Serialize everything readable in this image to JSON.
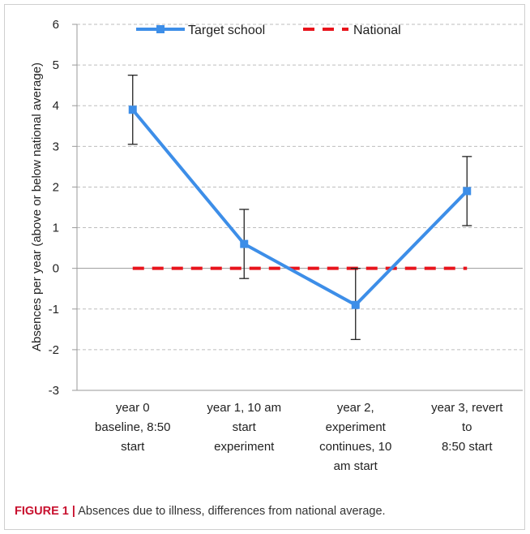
{
  "caption": {
    "figure_label": "FIGURE 1 |",
    "text": "Absences due to illness, differences from national average."
  },
  "colors": {
    "target": "#3d8ee8",
    "national": "#e8141c",
    "grid": "#bdbdbd",
    "error_bar": "#222222",
    "caption_label": "#c8102e"
  },
  "chart_data": {
    "type": "line",
    "ylabel": "Absences per year (above or below national average)",
    "xlabel": "",
    "ylim": [
      -3,
      6
    ],
    "yticks": [
      -3,
      -2,
      -1,
      0,
      1,
      2,
      3,
      4,
      5,
      6
    ],
    "grid": "horizontal dashed",
    "legend_position": "top",
    "categories": [
      [
        "year 0",
        "baseline, 8:50",
        "start"
      ],
      [
        "year 1, 10 am",
        "start",
        "experiment"
      ],
      [
        "year 2,",
        "experiment",
        "continues, 10",
        "am start"
      ],
      [
        "year 3, revert",
        "to",
        "8:50 start"
      ]
    ],
    "series": [
      {
        "name": "Target school",
        "values": [
          3.9,
          0.6,
          -0.9,
          1.9
        ],
        "error_low": [
          3.05,
          -0.25,
          -1.75,
          1.05
        ],
        "error_high": [
          4.75,
          1.45,
          0.0,
          2.75
        ]
      },
      {
        "name": "National",
        "values": [
          0,
          0,
          0,
          0
        ]
      }
    ]
  }
}
